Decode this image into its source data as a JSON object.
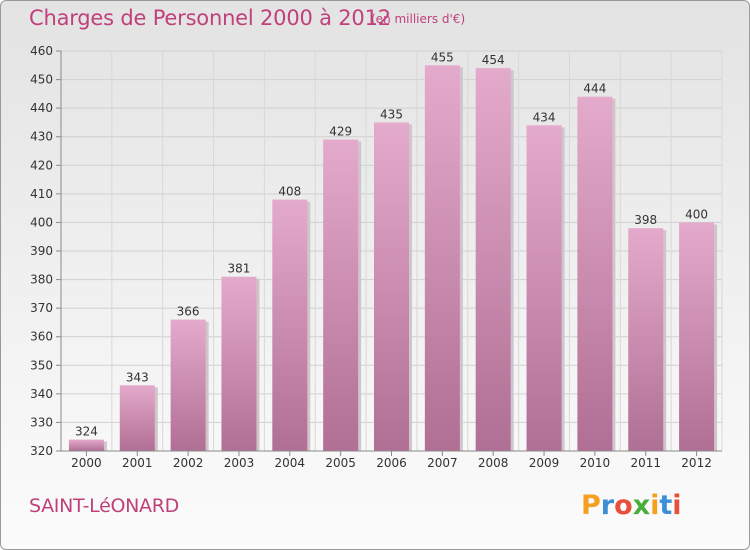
{
  "header": {
    "title": "Charges de Personnel 2000 à 2012",
    "subtitle": "(en milliers d'€)"
  },
  "footer": {
    "commune": "SAINT-LéONARD",
    "brand": "Proxiti"
  },
  "colors": {
    "accent": "#c0407c",
    "bar_top": "#e4aacb",
    "bar_bottom": "#b06f94",
    "brand_letters": [
      "#f4a020",
      "#3a8fd6",
      "#e84e3c",
      "#4cae3a",
      "#f4a020",
      "#3a8fd6",
      "#e84e3c"
    ]
  },
  "chart_data": {
    "type": "bar",
    "title": "Charges de Personnel 2000 à 2012",
    "unit": "(en milliers d'€)",
    "xlabel": "",
    "ylabel": "",
    "categories": [
      "2000",
      "2001",
      "2002",
      "2003",
      "2004",
      "2005",
      "2006",
      "2007",
      "2008",
      "2009",
      "2010",
      "2011",
      "2012"
    ],
    "values": [
      324,
      343,
      366,
      381,
      408,
      429,
      435,
      455,
      454,
      434,
      444,
      398,
      400
    ],
    "ylim": [
      320,
      460
    ],
    "yticks": [
      320,
      330,
      340,
      350,
      360,
      370,
      380,
      390,
      400,
      410,
      420,
      430,
      440,
      450,
      460
    ],
    "grid": true,
    "data_labels": true
  }
}
